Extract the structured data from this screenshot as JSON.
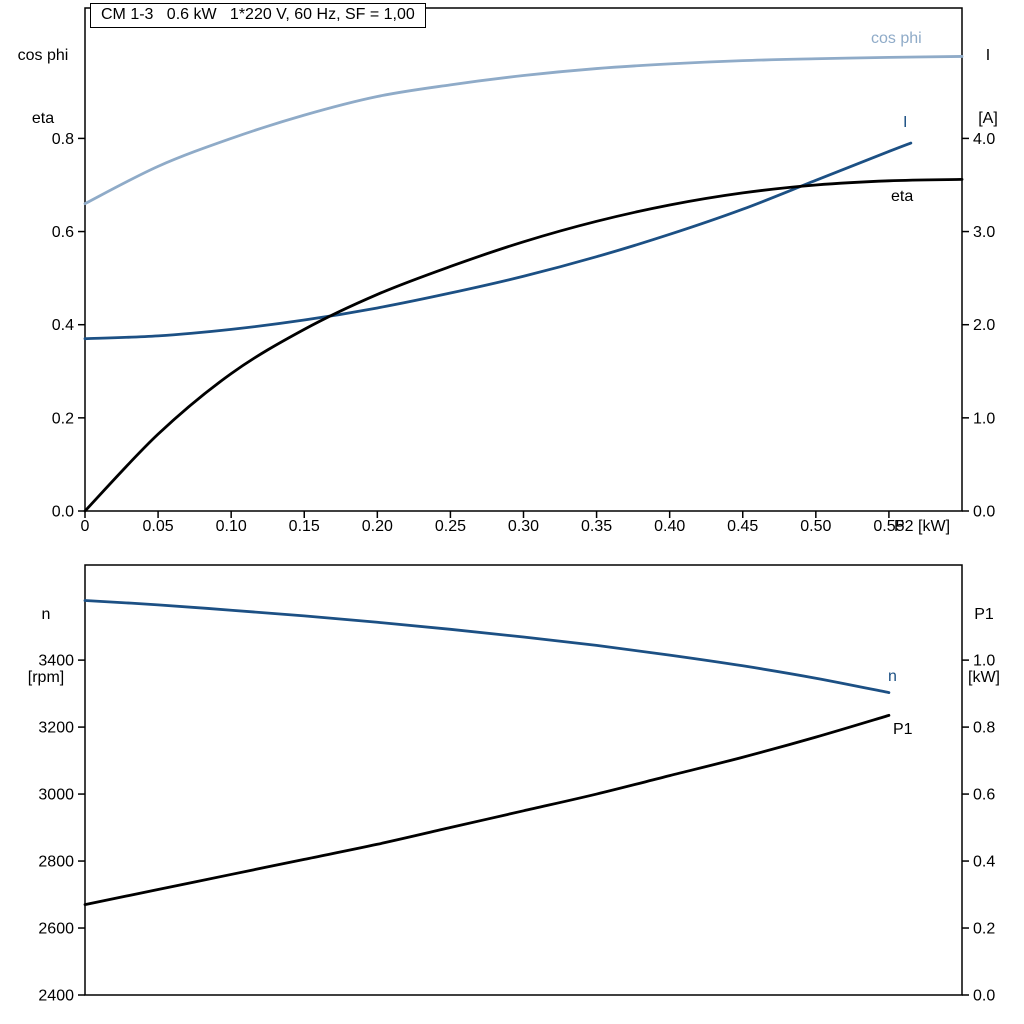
{
  "colors": {
    "light_blue": "#8fabc8",
    "dark_blue": "#1c5084",
    "black": "#000000",
    "frame": "#000000"
  },
  "labels": {
    "top_left_line1": "cos phi",
    "top_left_line2": "eta",
    "top_right_line1": "I",
    "top_right_line2": "[A]",
    "bottom_left_line1": "n",
    "bottom_left_line2": "[rpm]",
    "bottom_right_line1": "P1",
    "bottom_right_line2": "[kW]"
  },
  "chart_data": [
    {
      "type": "line",
      "title": "CM 1-3   0.6 kW   1*220 V, 60 Hz, SF = 1,00",
      "x": {
        "min": 0,
        "max": 0.6,
        "ticks": [
          0,
          0.05,
          0.1,
          0.15,
          0.2,
          0.25,
          0.3,
          0.35,
          0.4,
          0.45,
          0.5,
          0.55
        ],
        "labels": [
          "0",
          "0.05",
          "0.10",
          "0.15",
          "0.20",
          "0.25",
          "0.30",
          "0.35",
          "0.40",
          "0.45",
          "0.50",
          "0.55"
        ],
        "end_label": "P2 [kW]"
      },
      "left_axis": {
        "title": "cos phi / eta",
        "min": 0,
        "max": 1.08,
        "ticks": [
          0,
          0.2,
          0.4,
          0.6,
          0.8
        ],
        "labels": [
          "0.0",
          "0.2",
          "0.4",
          "0.6",
          "0.8"
        ]
      },
      "right_axis": {
        "title": "I [A]",
        "min": 0,
        "max": 5.4,
        "ticks": [
          0,
          1,
          2,
          3,
          4
        ],
        "labels": [
          "0.0",
          "1.0",
          "2.0",
          "3.0",
          "4.0"
        ]
      },
      "series": [
        {
          "name": "cos phi",
          "axis": "left",
          "color_key": "light_blue",
          "points": [
            [
              0,
              0.66
            ],
            [
              0.05,
              0.74
            ],
            [
              0.1,
              0.8
            ],
            [
              0.15,
              0.85
            ],
            [
              0.2,
              0.89
            ],
            [
              0.25,
              0.915
            ],
            [
              0.3,
              0.935
            ],
            [
              0.35,
              0.95
            ],
            [
              0.4,
              0.96
            ],
            [
              0.45,
              0.967
            ],
            [
              0.5,
              0.971
            ],
            [
              0.55,
              0.974
            ],
            [
              0.6,
              0.976
            ]
          ]
        },
        {
          "name": "I",
          "axis": "right",
          "color_key": "dark_blue",
          "points": [
            [
              0,
              1.85
            ],
            [
              0.05,
              1.88
            ],
            [
              0.1,
              1.95
            ],
            [
              0.15,
              2.05
            ],
            [
              0.2,
              2.18
            ],
            [
              0.25,
              2.34
            ],
            [
              0.3,
              2.52
            ],
            [
              0.35,
              2.73
            ],
            [
              0.4,
              2.97
            ],
            [
              0.45,
              3.24
            ],
            [
              0.5,
              3.55
            ],
            [
              0.55,
              3.86
            ],
            [
              0.565,
              3.95
            ]
          ]
        },
        {
          "name": "eta",
          "axis": "left",
          "color_key": "black",
          "points": [
            [
              0,
              0
            ],
            [
              0.05,
              0.165
            ],
            [
              0.1,
              0.295
            ],
            [
              0.15,
              0.39
            ],
            [
              0.2,
              0.465
            ],
            [
              0.25,
              0.525
            ],
            [
              0.3,
              0.578
            ],
            [
              0.35,
              0.622
            ],
            [
              0.4,
              0.657
            ],
            [
              0.45,
              0.683
            ],
            [
              0.5,
              0.7
            ],
            [
              0.55,
              0.709
            ],
            [
              0.6,
              0.712
            ]
          ]
        }
      ]
    },
    {
      "type": "line",
      "title": "",
      "x": {
        "min": 0,
        "max": 0.6,
        "ticks": [],
        "labels": [],
        "end_label": ""
      },
      "left_axis": {
        "title": "n [rpm]",
        "min": 2400,
        "max": 3684,
        "ticks": [
          2400,
          2600,
          2800,
          3000,
          3200,
          3400
        ],
        "labels": [
          "2400",
          "2600",
          "2800",
          "3000",
          "3200",
          "3400"
        ]
      },
      "right_axis": {
        "title": "P1 [kW]",
        "min": 0,
        "max": 1.284,
        "ticks": [
          0,
          0.2,
          0.4,
          0.6,
          0.8,
          1
        ],
        "labels": [
          "0.0",
          "0.2",
          "0.4",
          "0.6",
          "0.8",
          "1.0"
        ]
      },
      "series": [
        {
          "name": "n",
          "axis": "left",
          "color_key": "dark_blue",
          "points": [
            [
              0,
              3578
            ],
            [
              0.05,
              3565
            ],
            [
              0.1,
              3549
            ],
            [
              0.15,
              3532
            ],
            [
              0.2,
              3513
            ],
            [
              0.25,
              3492
            ],
            [
              0.3,
              3469
            ],
            [
              0.35,
              3444
            ],
            [
              0.4,
              3415
            ],
            [
              0.45,
              3383
            ],
            [
              0.5,
              3346
            ],
            [
              0.55,
              3303
            ]
          ]
        },
        {
          "name": "P1",
          "axis": "right",
          "color_key": "black",
          "points": [
            [
              0,
              0.27
            ],
            [
              0.05,
              0.315
            ],
            [
              0.1,
              0.36
            ],
            [
              0.15,
              0.405
            ],
            [
              0.2,
              0.45
            ],
            [
              0.25,
              0.5
            ],
            [
              0.3,
              0.55
            ],
            [
              0.35,
              0.6
            ],
            [
              0.4,
              0.655
            ],
            [
              0.45,
              0.71
            ],
            [
              0.5,
              0.77
            ],
            [
              0.55,
              0.835
            ]
          ]
        }
      ]
    }
  ]
}
